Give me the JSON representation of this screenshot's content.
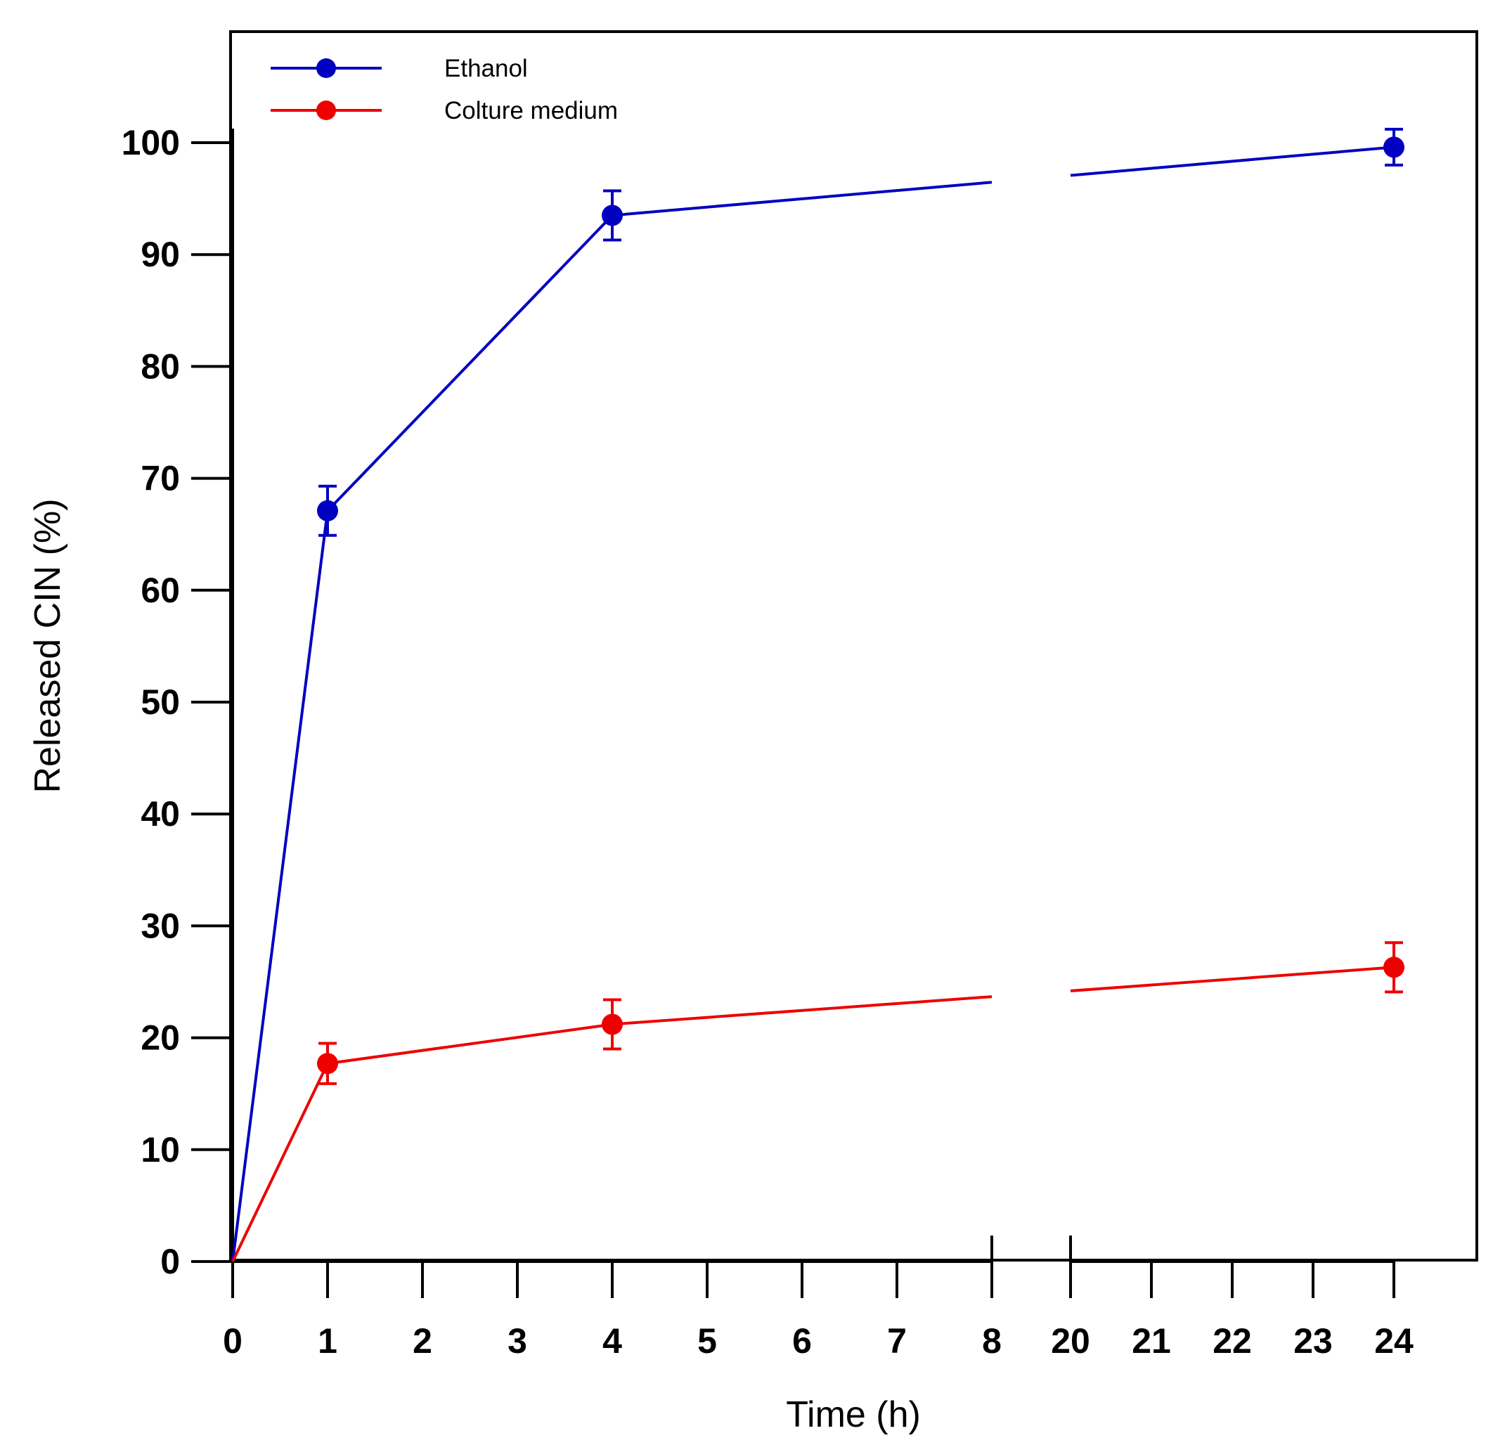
{
  "chart_data": {
    "type": "line",
    "title": "",
    "xlabel": "Time (h)",
    "ylabel": "Released CIN (%)",
    "ylim": [
      0,
      100
    ],
    "y_ticks": [
      0,
      10,
      20,
      30,
      40,
      50,
      60,
      70,
      80,
      90,
      100
    ],
    "x_segments": [
      {
        "range": [
          0,
          8
        ],
        "ticks": [
          0,
          1,
          2,
          3,
          4,
          5,
          6,
          7,
          8
        ]
      },
      {
        "range": [
          20,
          24
        ],
        "ticks": [
          20,
          21,
          22,
          23,
          24
        ]
      }
    ],
    "x_axis_break": [
      8,
      20
    ],
    "grid": false,
    "legend_position": "top-left",
    "series": [
      {
        "name": "Ethanol",
        "color": "#0000c0",
        "x": [
          0,
          1,
          4,
          24
        ],
        "y": [
          0,
          67.1,
          93.5,
          99.6
        ],
        "error": [
          0,
          2.2,
          2.2,
          1.6
        ]
      },
      {
        "name": "Colture medium",
        "color": "#ee0000",
        "x": [
          0,
          1,
          4,
          24
        ],
        "y": [
          0,
          17.7,
          21.2,
          26.3
        ],
        "error": [
          0,
          1.8,
          2.2,
          2.2
        ]
      }
    ]
  }
}
